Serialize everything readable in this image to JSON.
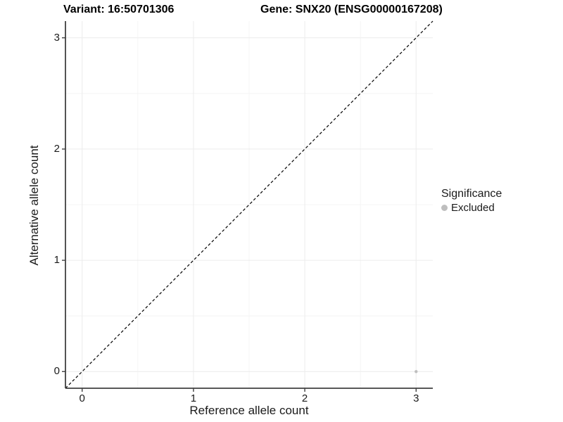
{
  "header": {
    "variant_title": "Variant: 16:50701306",
    "gene_title": "Gene: SNX20 (ENSG00000167208)"
  },
  "chart_data": {
    "type": "scatter",
    "xlabel": "Reference allele count",
    "ylabel": "Alternative allele count",
    "x_ticks": [
      0,
      1,
      2,
      3
    ],
    "y_ticks": [
      0,
      1,
      2,
      3
    ],
    "xlim": [
      -0.15,
      3.15
    ],
    "ylim": [
      -0.15,
      3.15
    ],
    "minor_grid_ticks": [
      0.5,
      1.5,
      2.5
    ],
    "grid": true,
    "points": [
      {
        "x": 3,
        "y": 0,
        "series": "Excluded"
      }
    ],
    "reference_line": {
      "kind": "identity",
      "style": "dashed",
      "color": "#000000"
    },
    "legend": {
      "title": "Significance",
      "position": "right",
      "entries": [
        {
          "label": "Excluded",
          "color": "#bebebe"
        }
      ]
    },
    "colors": {
      "point_excluded": "#bebebe",
      "grid_major": "#ececec",
      "grid_minor": "#f4f4f4",
      "axis_line": "#404040",
      "panel_background": "#ffffff"
    }
  }
}
